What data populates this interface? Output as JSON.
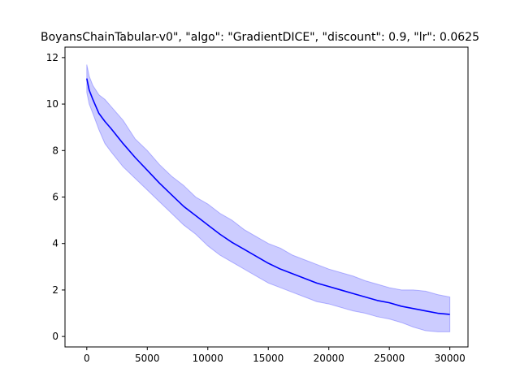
{
  "chart_data": {
    "type": "line",
    "title": "BoyansChainTabular-v0\", \"algo\": \"GradientDICE\", \"discount\": 0.9, \"lr\": 0.0625",
    "xlabel": "",
    "ylabel": "",
    "xlim": [
      -1800,
      31500
    ],
    "ylim": [
      -0.45,
      12.45
    ],
    "x_ticks": [
      0,
      5000,
      10000,
      15000,
      20000,
      25000,
      30000
    ],
    "y_ticks": [
      0,
      2,
      4,
      6,
      8,
      10,
      12
    ],
    "grid": false,
    "legend": "none",
    "series": [
      {
        "line_color": "#0000ff",
        "band_color": "#0000ff",
        "x": [
          0,
          200,
          500,
          1000,
          1500,
          2000,
          3000,
          4000,
          5000,
          6000,
          7000,
          8000,
          9000,
          10000,
          11000,
          12000,
          13000,
          14000,
          15000,
          16000,
          17000,
          18000,
          19000,
          20000,
          21000,
          22000,
          23000,
          24000,
          25000,
          26000,
          27000,
          28000,
          29000,
          30000
        ],
        "mean": [
          11.1,
          10.6,
          10.2,
          9.6,
          9.25,
          8.95,
          8.3,
          7.7,
          7.15,
          6.6,
          6.1,
          5.6,
          5.2,
          4.8,
          4.4,
          4.05,
          3.75,
          3.45,
          3.15,
          2.9,
          2.7,
          2.5,
          2.3,
          2.15,
          2.0,
          1.85,
          1.7,
          1.55,
          1.45,
          1.3,
          1.2,
          1.1,
          1.0,
          0.95
        ],
        "upper": [
          11.7,
          11.2,
          10.8,
          10.4,
          10.2,
          9.9,
          9.3,
          8.5,
          8.0,
          7.4,
          6.9,
          6.5,
          6.0,
          5.7,
          5.3,
          5.0,
          4.6,
          4.3,
          4.0,
          3.8,
          3.5,
          3.3,
          3.1,
          2.9,
          2.75,
          2.6,
          2.4,
          2.25,
          2.1,
          2.0,
          2.0,
          1.95,
          1.8,
          1.7
        ],
        "lower": [
          10.5,
          10.0,
          9.6,
          8.9,
          8.3,
          7.95,
          7.3,
          6.8,
          6.3,
          5.8,
          5.3,
          4.8,
          4.4,
          3.9,
          3.5,
          3.2,
          2.9,
          2.6,
          2.3,
          2.1,
          1.9,
          1.7,
          1.5,
          1.4,
          1.25,
          1.1,
          1.0,
          0.85,
          0.75,
          0.6,
          0.4,
          0.25,
          0.2,
          0.2
        ]
      }
    ]
  }
}
